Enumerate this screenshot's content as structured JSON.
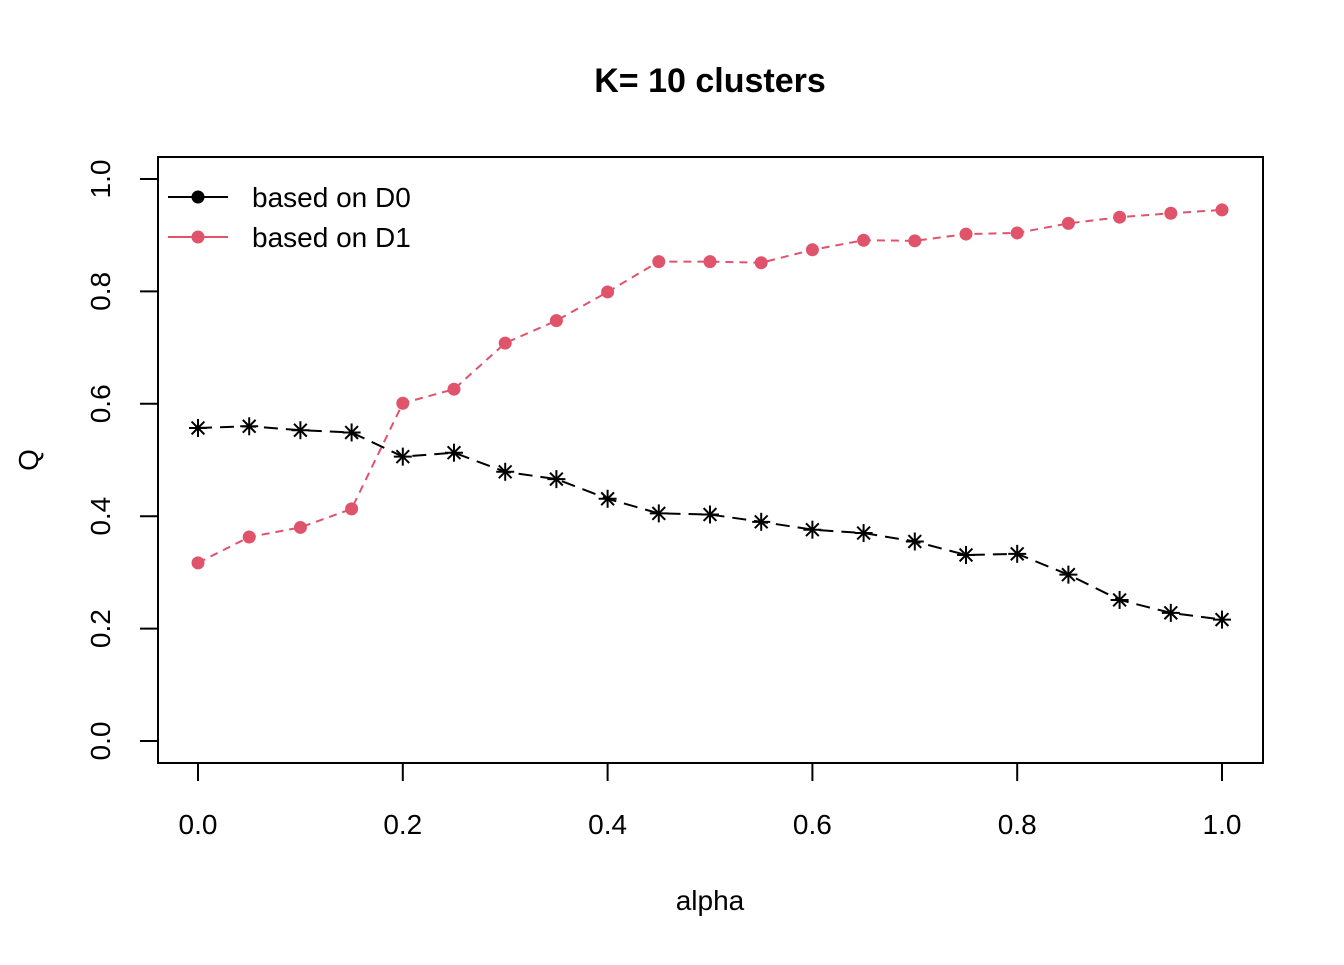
{
  "chart_data": {
    "type": "line",
    "title": "K= 10 clusters",
    "xlabel": "alpha",
    "ylabel": "Q",
    "xlim": [
      0.0,
      1.0
    ],
    "ylim": [
      0.0,
      1.0
    ],
    "x_ticks": [
      "0.0",
      "0.2",
      "0.4",
      "0.6",
      "0.8",
      "1.0"
    ],
    "y_ticks": [
      "0.0",
      "0.2",
      "0.4",
      "0.6",
      "0.8",
      "1.0"
    ],
    "grid": false,
    "legend_position": "top-left",
    "x": [
      0.0,
      0.05,
      0.1,
      0.15,
      0.2,
      0.25,
      0.3,
      0.35,
      0.4,
      0.45,
      0.5,
      0.55,
      0.6,
      0.65,
      0.7,
      0.75,
      0.8,
      0.85,
      0.9,
      0.95,
      1.0
    ],
    "series": [
      {
        "name": "based on D0",
        "color": "#000000",
        "marker": "asterisk",
        "line": "dashed",
        "values": [
          0.557,
          0.56,
          0.553,
          0.549,
          0.506,
          0.513,
          0.479,
          0.466,
          0.431,
          0.405,
          0.403,
          0.39,
          0.376,
          0.37,
          0.355,
          0.331,
          0.333,
          0.296,
          0.251,
          0.228,
          0.216
        ]
      },
      {
        "name": "based on D1",
        "color": "#DF536B",
        "marker": "dot",
        "line": "dashed",
        "values": [
          0.317,
          0.363,
          0.38,
          0.413,
          0.601,
          0.626,
          0.708,
          0.748,
          0.799,
          0.853,
          0.853,
          0.851,
          0.874,
          0.891,
          0.89,
          0.902,
          0.904,
          0.921,
          0.932,
          0.939,
          0.945
        ]
      }
    ]
  }
}
